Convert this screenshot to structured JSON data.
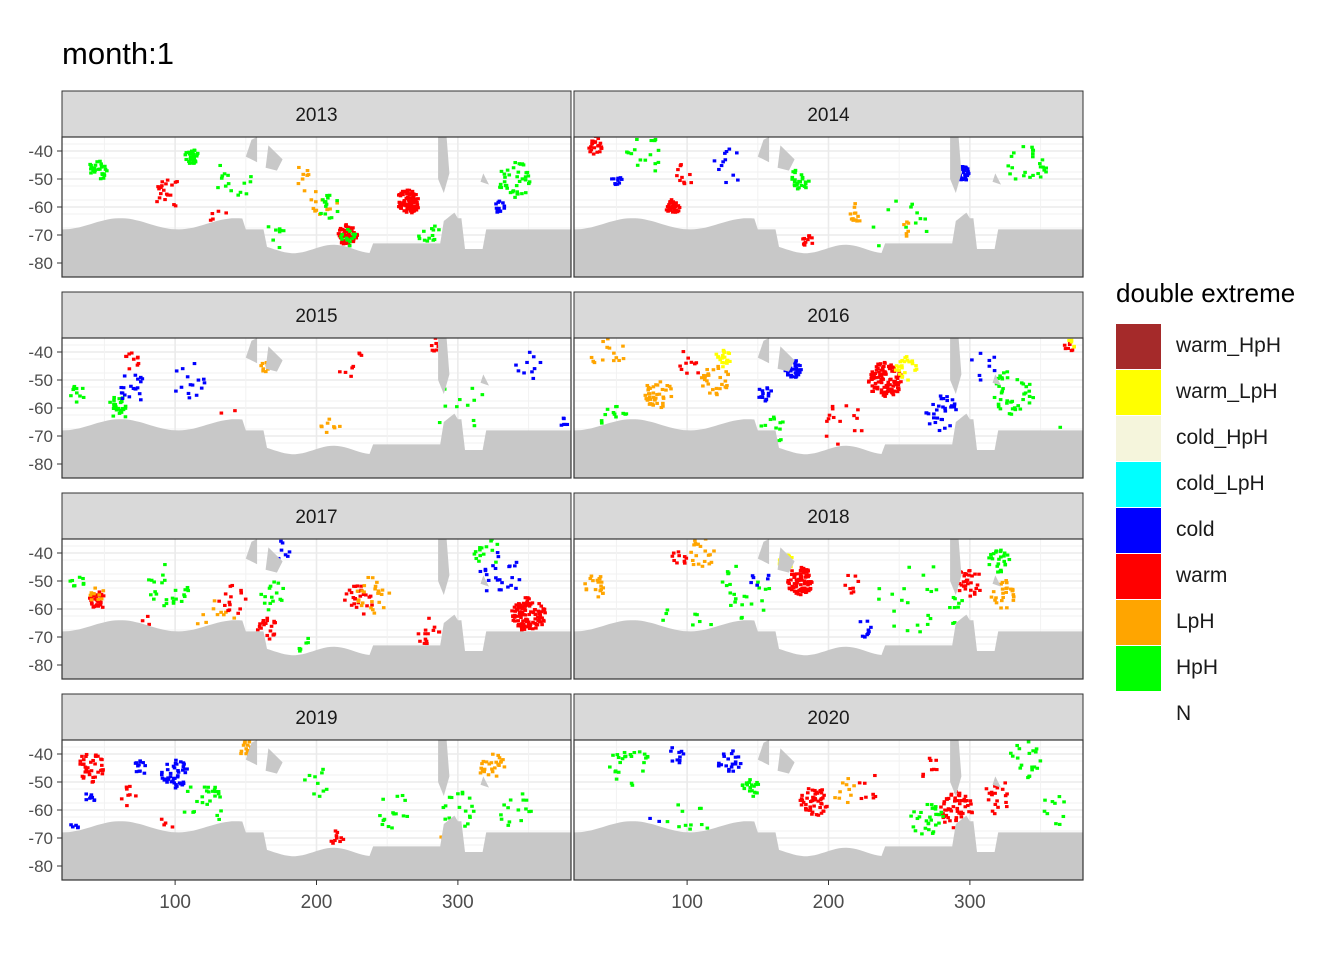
{
  "title": "month:1",
  "chart_data": {
    "type": "heatmap",
    "title": "month:1",
    "xlabel": "",
    "ylabel": "",
    "x_ticks": [
      100,
      200,
      300
    ],
    "y_ticks": [
      -40,
      -50,
      -60,
      -70,
      -80
    ],
    "x_range": [
      20,
      380
    ],
    "y_range": [
      -85,
      -35
    ],
    "facet_by": "year",
    "panels": [
      "2013",
      "2014",
      "2015",
      "2016",
      "2017",
      "2018",
      "2019",
      "2020"
    ],
    "legend": {
      "title": "double extreme",
      "items": [
        {
          "label": "warm_HpH",
          "color": "#A52A2A"
        },
        {
          "label": "warm_LpH",
          "color": "#FFFF00"
        },
        {
          "label": "cold_HpH",
          "color": "#F5F5DC"
        },
        {
          "label": "cold_LpH",
          "color": "#00FFFF"
        },
        {
          "label": "cold",
          "color": "#0000FF"
        },
        {
          "label": "warm",
          "color": "#FF0000"
        },
        {
          "label": "LpH",
          "color": "#FFA500"
        },
        {
          "label": "HpH",
          "color": "#00FF00"
        },
        {
          "label": "N",
          "color": "#FFFFFF"
        }
      ]
    },
    "clusters": {
      "2013": [
        {
          "cat": "HpH",
          "lon": 112,
          "lat": -42,
          "r": 5,
          "n": 30
        },
        {
          "cat": "HpH",
          "lon": 45,
          "lat": -47,
          "r": 7,
          "n": 25
        },
        {
          "cat": "warm",
          "lon": 265,
          "lat": -58,
          "r": 8,
          "n": 90
        },
        {
          "cat": "warm",
          "lon": 222,
          "lat": -70,
          "r": 7,
          "n": 55
        },
        {
          "cat": "HpH",
          "lon": 222,
          "lat": -71,
          "r": 6,
          "n": 15
        },
        {
          "cat": "cold",
          "lon": 330,
          "lat": -60,
          "r": 4,
          "n": 15
        },
        {
          "cat": "HpH",
          "lon": 340,
          "lat": -50,
          "r": 12,
          "n": 40
        },
        {
          "cat": "HpH",
          "lon": 280,
          "lat": -70,
          "r": 8,
          "n": 20
        },
        {
          "cat": "warm",
          "lon": 95,
          "lat": -55,
          "r": 10,
          "n": 20
        },
        {
          "cat": "LpH",
          "lon": 205,
          "lat": -58,
          "r": 10,
          "n": 12
        },
        {
          "cat": "HpH",
          "lon": 210,
          "lat": -60,
          "r": 8,
          "n": 15
        },
        {
          "cat": "warm",
          "lon": 130,
          "lat": -64,
          "r": 8,
          "n": 12
        },
        {
          "cat": "HpH",
          "lon": 140,
          "lat": -50,
          "r": 15,
          "n": 15
        },
        {
          "cat": "LpH",
          "lon": 190,
          "lat": -50,
          "r": 8,
          "n": 8
        },
        {
          "cat": "HpH",
          "lon": 170,
          "lat": -72,
          "r": 10,
          "n": 10
        }
      ],
      "2014": [
        {
          "cat": "warm",
          "lon": 35,
          "lat": -38,
          "r": 6,
          "n": 25
        },
        {
          "cat": "warm",
          "lon": 90,
          "lat": -60,
          "r": 5,
          "n": 35
        },
        {
          "cat": "cold",
          "lon": 295,
          "lat": -48,
          "r": 5,
          "n": 40
        },
        {
          "cat": "cold",
          "lon": 50,
          "lat": -50,
          "r": 4,
          "n": 10
        },
        {
          "cat": "HpH",
          "lon": 180,
          "lat": -50,
          "r": 7,
          "n": 25
        },
        {
          "cat": "warm",
          "lon": 185,
          "lat": -72,
          "r": 4,
          "n": 12
        },
        {
          "cat": "LpH",
          "lon": 220,
          "lat": -62,
          "r": 6,
          "n": 12
        },
        {
          "cat": "HpH",
          "lon": 340,
          "lat": -45,
          "r": 15,
          "n": 25
        },
        {
          "cat": "HpH",
          "lon": 70,
          "lat": -40,
          "r": 15,
          "n": 20
        },
        {
          "cat": "HpH",
          "lon": 250,
          "lat": -68,
          "r": 20,
          "n": 20
        },
        {
          "cat": "cold",
          "lon": 130,
          "lat": -45,
          "r": 15,
          "n": 12
        },
        {
          "cat": "warm",
          "lon": 100,
          "lat": -48,
          "r": 8,
          "n": 10
        },
        {
          "cat": "LpH",
          "lon": 255,
          "lat": -68,
          "r": 5,
          "n": 6
        }
      ],
      "2015": [
        {
          "cat": "HpH",
          "lon": 60,
          "lat": -60,
          "r": 8,
          "n": 25
        },
        {
          "cat": "cold",
          "lon": 70,
          "lat": -53,
          "r": 10,
          "n": 20
        },
        {
          "cat": "warm",
          "lon": 70,
          "lat": -43,
          "r": 6,
          "n": 10
        },
        {
          "cat": "cold",
          "lon": 110,
          "lat": -50,
          "r": 12,
          "n": 15
        },
        {
          "cat": "warm",
          "lon": 140,
          "lat": -65,
          "r": 10,
          "n": 10
        },
        {
          "cat": "LpH",
          "lon": 165,
          "lat": -45,
          "r": 5,
          "n": 10
        },
        {
          "cat": "warm",
          "lon": 225,
          "lat": -45,
          "r": 10,
          "n": 8
        },
        {
          "cat": "LpH",
          "lon": 210,
          "lat": -68,
          "r": 8,
          "n": 8
        },
        {
          "cat": "warm",
          "lon": 285,
          "lat": -38,
          "r": 6,
          "n": 10
        },
        {
          "cat": "HpH",
          "lon": 300,
          "lat": -60,
          "r": 20,
          "n": 15
        },
        {
          "cat": "cold",
          "lon": 350,
          "lat": -45,
          "r": 10,
          "n": 10
        },
        {
          "cat": "HpH",
          "lon": 30,
          "lat": -55,
          "r": 6,
          "n": 10
        },
        {
          "cat": "cold",
          "lon": 375,
          "lat": -65,
          "r": 3,
          "n": 6
        }
      ],
      "2016": [
        {
          "cat": "warm",
          "lon": 240,
          "lat": -50,
          "r": 12,
          "n": 120
        },
        {
          "cat": "warm_LpH",
          "lon": 255,
          "lat": -46,
          "r": 8,
          "n": 25
        },
        {
          "cat": "warm_LpH",
          "lon": 125,
          "lat": -42,
          "r": 6,
          "n": 20
        },
        {
          "cat": "LpH",
          "lon": 80,
          "lat": -55,
          "r": 10,
          "n": 40
        },
        {
          "cat": "LpH",
          "lon": 120,
          "lat": -50,
          "r": 10,
          "n": 30
        },
        {
          "cat": "LpH",
          "lon": 45,
          "lat": -38,
          "r": 15,
          "n": 20
        },
        {
          "cat": "cold",
          "lon": 175,
          "lat": -46,
          "r": 6,
          "n": 40
        },
        {
          "cat": "cold",
          "lon": 155,
          "lat": -55,
          "r": 5,
          "n": 15
        },
        {
          "cat": "cold",
          "lon": 280,
          "lat": -62,
          "r": 12,
          "n": 30
        },
        {
          "cat": "HpH",
          "lon": 330,
          "lat": -55,
          "r": 15,
          "n": 40
        },
        {
          "cat": "HpH",
          "lon": 50,
          "lat": -65,
          "r": 12,
          "n": 30
        },
        {
          "cat": "HpH",
          "lon": 160,
          "lat": -68,
          "r": 10,
          "n": 20
        },
        {
          "cat": "warm",
          "lon": 370,
          "lat": -38,
          "r": 4,
          "n": 8
        },
        {
          "cat": "warm_LpH",
          "lon": 372,
          "lat": -37,
          "r": 3,
          "n": 5
        },
        {
          "cat": "warm",
          "lon": 210,
          "lat": -65,
          "r": 15,
          "n": 15
        },
        {
          "cat": "cold",
          "lon": 310,
          "lat": -45,
          "r": 10,
          "n": 8
        },
        {
          "cat": "warm",
          "lon": 100,
          "lat": -45,
          "r": 10,
          "n": 10
        },
        {
          "cat": "HpH",
          "lon": 360,
          "lat": -68,
          "r": 10,
          "n": 10
        }
      ],
      "2017": [
        {
          "cat": "warm",
          "lon": 350,
          "lat": -62,
          "r": 12,
          "n": 120
        },
        {
          "cat": "warm",
          "lon": 45,
          "lat": -57,
          "r": 6,
          "n": 35
        },
        {
          "cat": "LpH",
          "lon": 45,
          "lat": -55,
          "r": 6,
          "n": 10
        },
        {
          "cat": "warm",
          "lon": 165,
          "lat": -67,
          "r": 7,
          "n": 25
        },
        {
          "cat": "warm",
          "lon": 230,
          "lat": -57,
          "r": 10,
          "n": 25
        },
        {
          "cat": "LpH",
          "lon": 240,
          "lat": -55,
          "r": 12,
          "n": 25
        },
        {
          "cat": "warm",
          "lon": 280,
          "lat": -68,
          "r": 10,
          "n": 15
        },
        {
          "cat": "LpH",
          "lon": 130,
          "lat": -65,
          "r": 15,
          "n": 20
        },
        {
          "cat": "warm",
          "lon": 140,
          "lat": -57,
          "r": 10,
          "n": 15
        },
        {
          "cat": "HpH",
          "lon": 95,
          "lat": -52,
          "r": 15,
          "n": 25
        },
        {
          "cat": "HpH",
          "lon": 170,
          "lat": -55,
          "r": 12,
          "n": 15
        },
        {
          "cat": "cold",
          "lon": 330,
          "lat": -48,
          "r": 15,
          "n": 25
        },
        {
          "cat": "HpH",
          "lon": 320,
          "lat": -40,
          "r": 10,
          "n": 15
        },
        {
          "cat": "HpH",
          "lon": 30,
          "lat": -50,
          "r": 6,
          "n": 8
        },
        {
          "cat": "warm",
          "lon": 80,
          "lat": -67,
          "r": 10,
          "n": 15
        },
        {
          "cat": "HpH",
          "lon": 190,
          "lat": -72,
          "r": 6,
          "n": 6
        },
        {
          "cat": "cold",
          "lon": 175,
          "lat": -40,
          "r": 8,
          "n": 8
        }
      ],
      "2018": [
        {
          "cat": "warm",
          "lon": 180,
          "lat": -50,
          "r": 9,
          "n": 80
        },
        {
          "cat": "warm_LpH",
          "lon": 170,
          "lat": -43,
          "r": 5,
          "n": 30
        },
        {
          "cat": "warm",
          "lon": 300,
          "lat": -50,
          "r": 10,
          "n": 30
        },
        {
          "cat": "LpH",
          "lon": 325,
          "lat": -55,
          "r": 10,
          "n": 25
        },
        {
          "cat": "HpH",
          "lon": 320,
          "lat": -43,
          "r": 8,
          "n": 25
        },
        {
          "cat": "LpH",
          "lon": 35,
          "lat": -52,
          "r": 8,
          "n": 20
        },
        {
          "cat": "LpH",
          "lon": 110,
          "lat": -40,
          "r": 10,
          "n": 20
        },
        {
          "cat": "warm",
          "lon": 95,
          "lat": -42,
          "r": 6,
          "n": 10
        },
        {
          "cat": "HpH",
          "lon": 140,
          "lat": -55,
          "r": 20,
          "n": 25
        },
        {
          "cat": "HpH",
          "lon": 260,
          "lat": -55,
          "r": 25,
          "n": 20
        },
        {
          "cat": "cold",
          "lon": 225,
          "lat": -67,
          "r": 6,
          "n": 10
        },
        {
          "cat": "HpH",
          "lon": 100,
          "lat": -68,
          "r": 20,
          "n": 15
        },
        {
          "cat": "warm",
          "lon": 215,
          "lat": -52,
          "r": 8,
          "n": 8
        },
        {
          "cat": "cold",
          "lon": 150,
          "lat": -48,
          "r": 8,
          "n": 6
        },
        {
          "cat": "HpH",
          "lon": 290,
          "lat": -60,
          "r": 10,
          "n": 10
        }
      ],
      "2019": [
        {
          "cat": "warm",
          "lon": 40,
          "lat": -45,
          "r": 10,
          "n": 40
        },
        {
          "cat": "cold",
          "lon": 100,
          "lat": -47,
          "r": 10,
          "n": 45
        },
        {
          "cat": "cold",
          "lon": 75,
          "lat": -45,
          "r": 5,
          "n": 12
        },
        {
          "cat": "LpH",
          "lon": 325,
          "lat": -45,
          "r": 10,
          "n": 25
        },
        {
          "cat": "LpH",
          "lon": 150,
          "lat": -38,
          "r": 5,
          "n": 15
        },
        {
          "cat": "HpH",
          "lon": 120,
          "lat": -58,
          "r": 15,
          "n": 25
        },
        {
          "cat": "HpH",
          "lon": 300,
          "lat": -60,
          "r": 12,
          "n": 20
        },
        {
          "cat": "HpH",
          "lon": 250,
          "lat": -60,
          "r": 15,
          "n": 15
        },
        {
          "cat": "warm",
          "lon": 215,
          "lat": -70,
          "r": 5,
          "n": 10
        },
        {
          "cat": "cold",
          "lon": 40,
          "lat": -55,
          "r": 4,
          "n": 8
        },
        {
          "cat": "LpH",
          "lon": 290,
          "lat": -70,
          "r": 4,
          "n": 6
        },
        {
          "cat": "HpH",
          "lon": 340,
          "lat": -60,
          "r": 12,
          "n": 15
        },
        {
          "cat": "warm",
          "lon": 70,
          "lat": -55,
          "r": 8,
          "n": 8
        },
        {
          "cat": "cold",
          "lon": 30,
          "lat": -66,
          "r": 4,
          "n": 6
        },
        {
          "cat": "warm",
          "lon": 95,
          "lat": -65,
          "r": 6,
          "n": 6
        },
        {
          "cat": "HpH",
          "lon": 200,
          "lat": -50,
          "r": 10,
          "n": 10
        }
      ],
      "2020": [
        {
          "cat": "warm",
          "lon": 290,
          "lat": -60,
          "r": 12,
          "n": 60
        },
        {
          "cat": "warm",
          "lon": 190,
          "lat": -57,
          "r": 10,
          "n": 50
        },
        {
          "cat": "warm",
          "lon": 320,
          "lat": -55,
          "r": 12,
          "n": 20
        },
        {
          "cat": "HpH",
          "lon": 270,
          "lat": -63,
          "r": 12,
          "n": 30
        },
        {
          "cat": "HpH",
          "lon": 145,
          "lat": -52,
          "r": 6,
          "n": 20
        },
        {
          "cat": "cold",
          "lon": 130,
          "lat": -43,
          "r": 8,
          "n": 20
        },
        {
          "cat": "HpH",
          "lon": 60,
          "lat": -45,
          "r": 15,
          "n": 25
        },
        {
          "cat": "HpH",
          "lon": 340,
          "lat": -42,
          "r": 12,
          "n": 20
        },
        {
          "cat": "cold",
          "lon": 90,
          "lat": -40,
          "r": 8,
          "n": 10
        },
        {
          "cat": "HpH",
          "lon": 100,
          "lat": -65,
          "r": 15,
          "n": 15
        },
        {
          "cat": "LpH",
          "lon": 210,
          "lat": -55,
          "r": 12,
          "n": 10
        },
        {
          "cat": "warm",
          "lon": 230,
          "lat": -52,
          "r": 10,
          "n": 8
        },
        {
          "cat": "cold",
          "lon": 75,
          "lat": -65,
          "r": 6,
          "n": 6
        },
        {
          "cat": "HpH",
          "lon": 360,
          "lat": -60,
          "r": 10,
          "n": 10
        },
        {
          "cat": "warm",
          "lon": 270,
          "lat": -45,
          "r": 8,
          "n": 8
        }
      ]
    }
  }
}
